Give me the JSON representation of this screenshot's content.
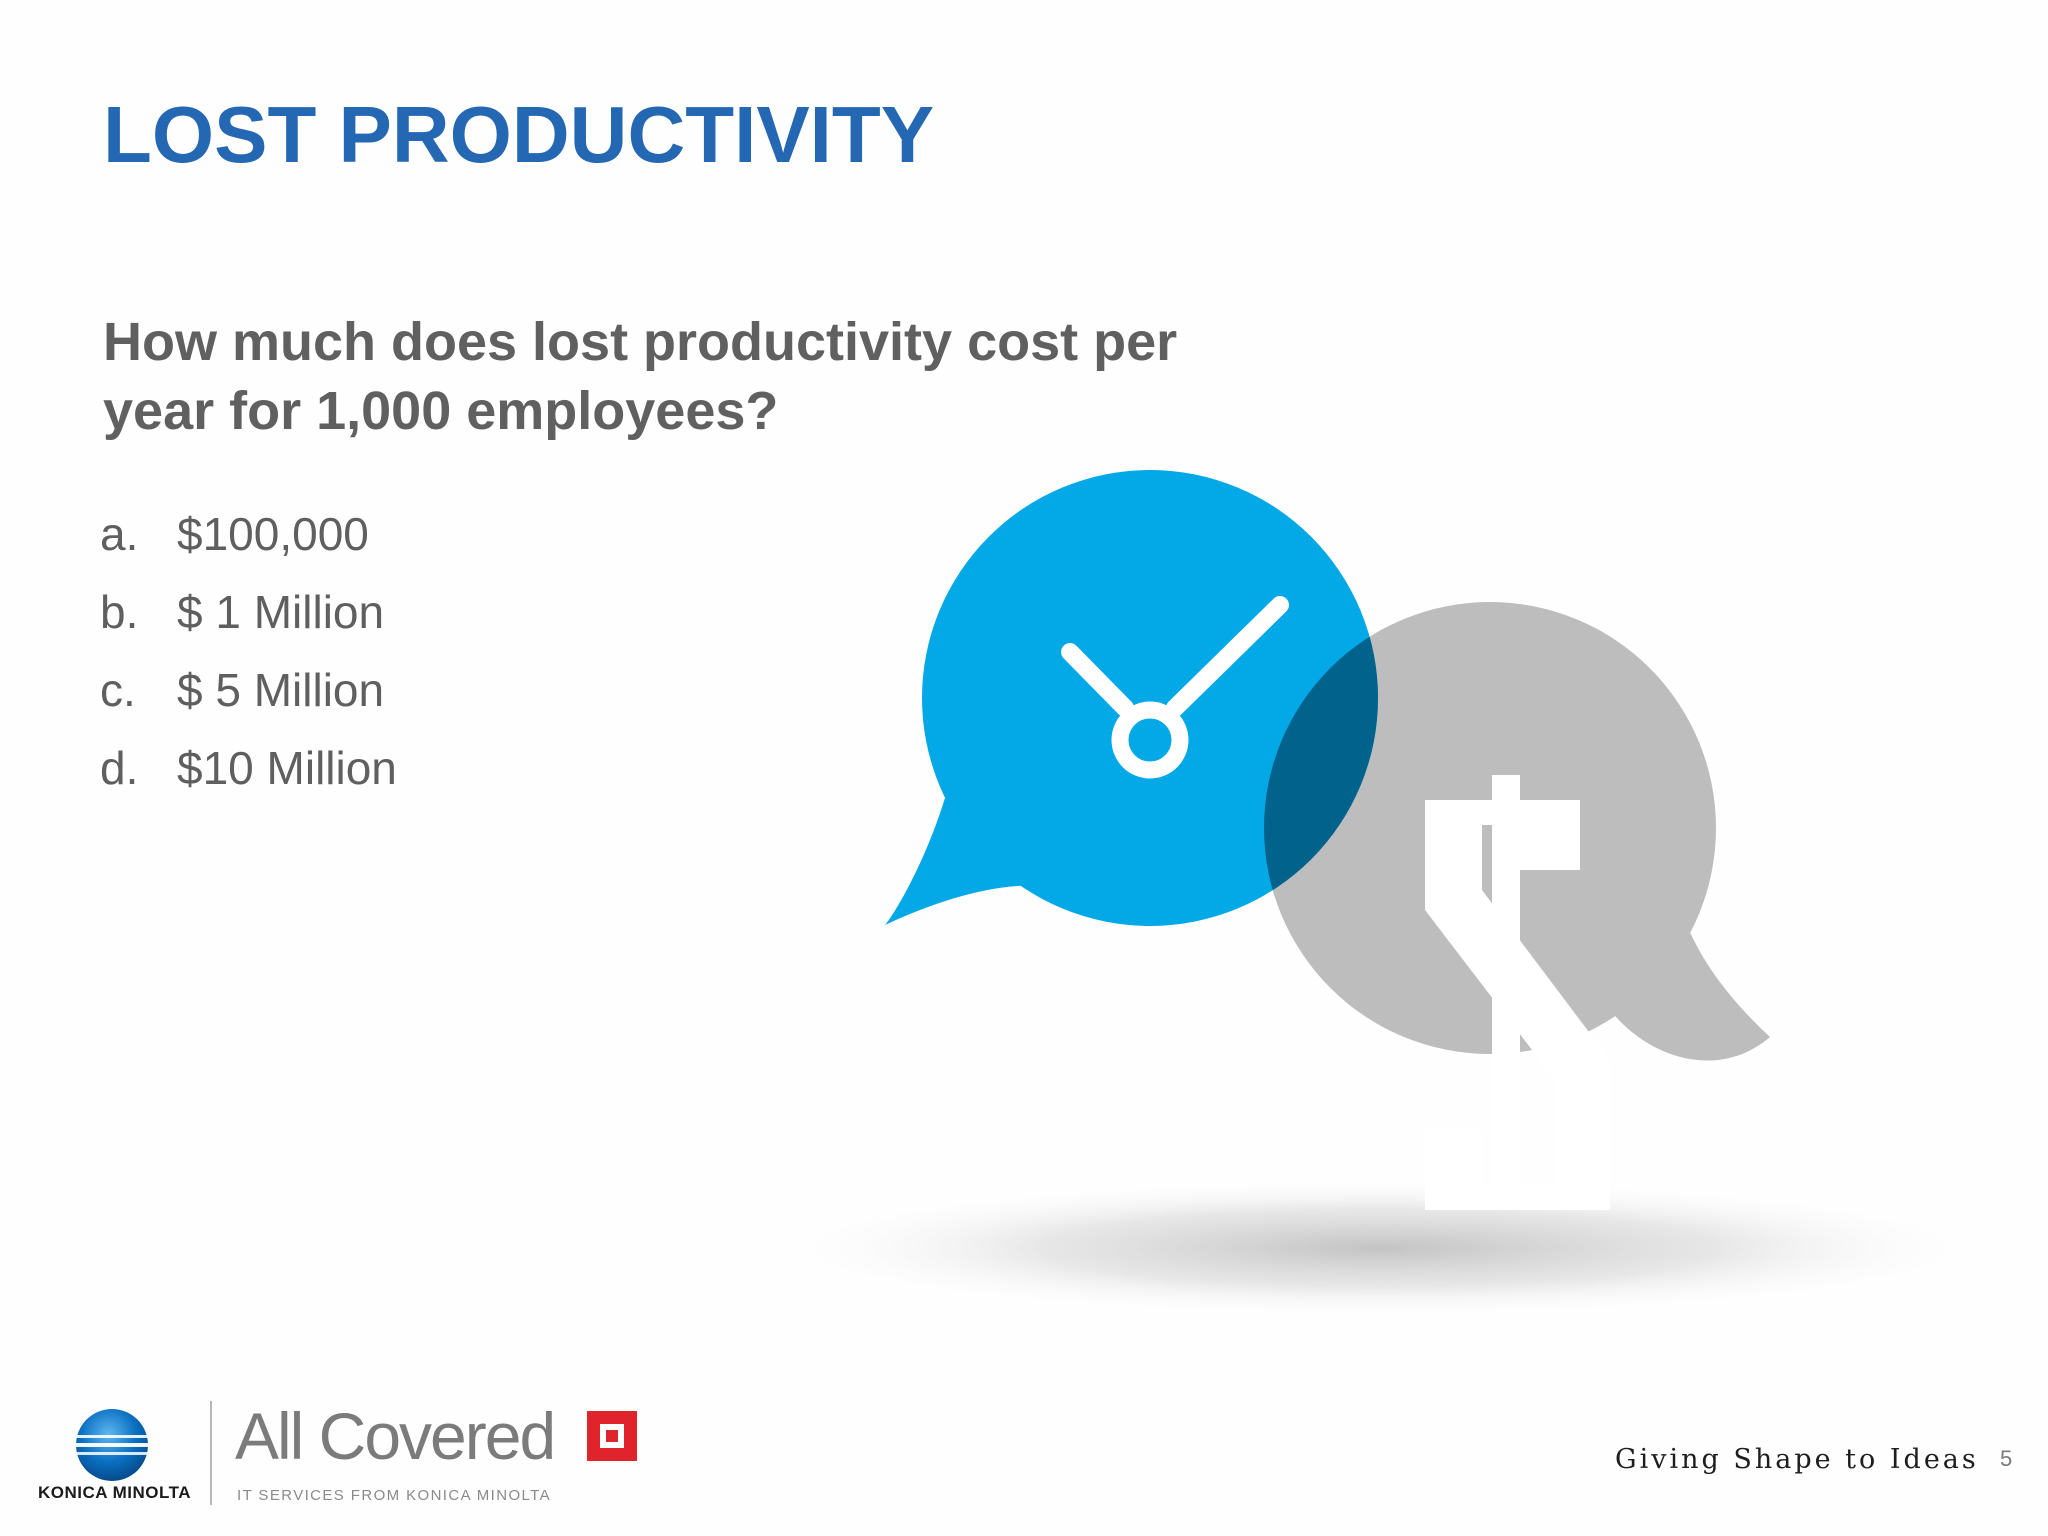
{
  "slide": {
    "title": "LOST PRODUCTIVITY",
    "question": "How much does lost productivity cost per year for 1,000 employees?",
    "answers": [
      {
        "marker": "a.",
        "text": "$100,000"
      },
      {
        "marker": "b.",
        "text": "$ 1 Million"
      },
      {
        "marker": "c.",
        "text": "$ 5 Million"
      },
      {
        "marker": "d.",
        "text": "$10 Million"
      }
    ],
    "slide_number": "5"
  },
  "illustration": {
    "clock_bubble_color": "#03a8e7",
    "dollar_bubble_color": "#bdbdbd",
    "overlap_color": "#01628b",
    "icons": [
      "clock-icon",
      "dollar-sign-icon"
    ]
  },
  "footer": {
    "konica_logo_text": "KONICA MINOLTA",
    "brand_name": "All Covered",
    "brand_subtitle": "IT SERVICES FROM KONICA MINOLTA",
    "tagline": "Giving Shape to Ideas",
    "brand_mark_color": "#e0242b",
    "konica_logo_color": "#0a6fc2"
  }
}
